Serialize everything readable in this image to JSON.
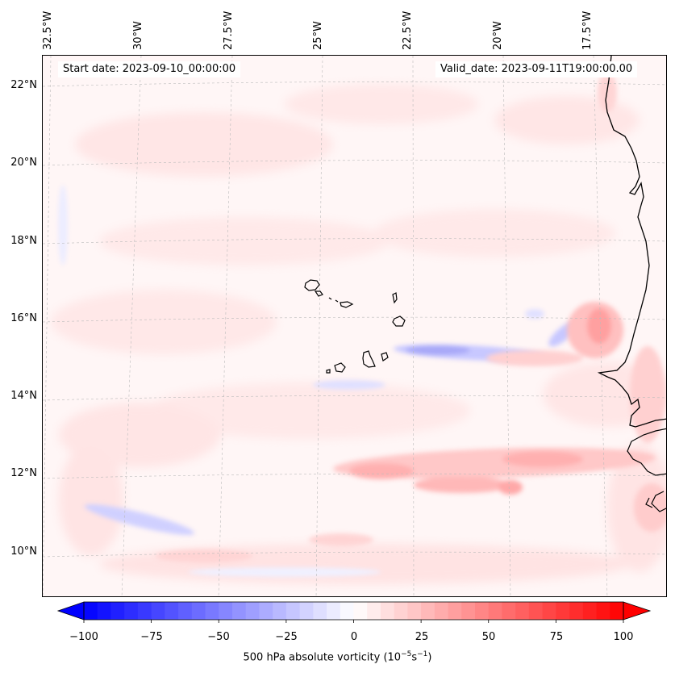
{
  "map": {
    "start_date_label": "Start date: 2023-09-10_00:00:00",
    "valid_date_label": "Valid_date: 2023-09-11T19:00:00.00",
    "longitude_labels": [
      "32.5°W",
      "30°W",
      "27.5°W",
      "25°W",
      "22.5°W",
      "20°W",
      "17.5°W"
    ],
    "latitude_labels": [
      "22°N",
      "20°N",
      "18°N",
      "16°N",
      "14°N",
      "12°N",
      "10°N"
    ],
    "field_name": "500 hPa absolute vorticity",
    "colors": {
      "negative": "#0000ff",
      "positive": "#ff0000",
      "neutral": "#ffffff",
      "coast": "#000000",
      "grid": "#bbbbbb"
    }
  },
  "colorbar": {
    "title": "500 hPa absolute vorticity (10",
    "exponent": "−5",
    "unit_tail": "s",
    "unit_exponent": "−1",
    "title_end": ")",
    "tick_labels": [
      "−100",
      "−75",
      "−50",
      "−25",
      "0",
      "25",
      "50",
      "75",
      "100"
    ],
    "range": [
      -100,
      100
    ],
    "levels": 40
  }
}
